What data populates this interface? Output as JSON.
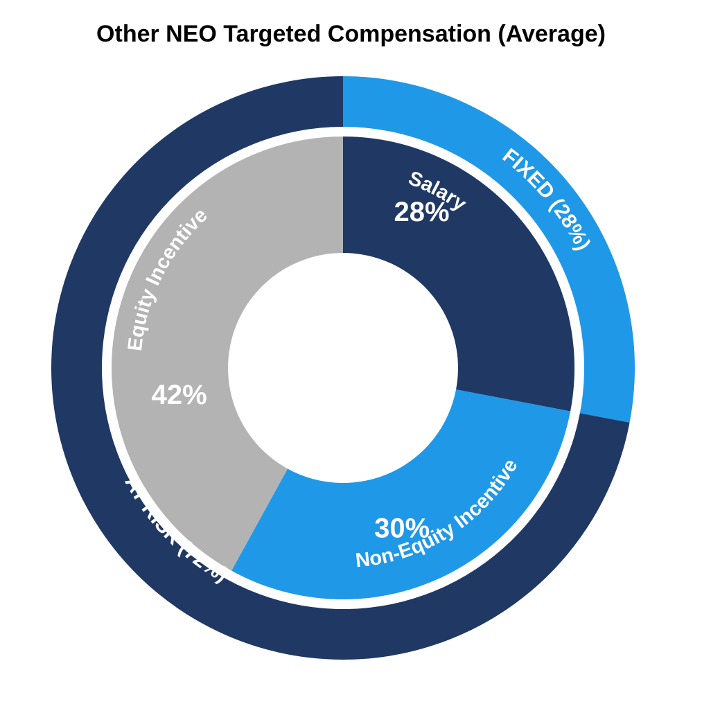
{
  "chart_data": {
    "type": "pie",
    "title": "Other NEO Targeted Compensation (Average)",
    "inner_ring": [
      {
        "label": "Salary",
        "value": 28,
        "value_label": "28%",
        "color": "#203864"
      },
      {
        "label": "Non-Equity Incentive",
        "value": 30,
        "value_label": "30%",
        "color": "#1f98e8"
      },
      {
        "label": "Equity Incentive",
        "value": 42,
        "value_label": "42%",
        "color": "#b3b3b3"
      }
    ],
    "outer_ring": [
      {
        "label": "FIXED (28%)",
        "value": 28,
        "color": "#1f98e8"
      },
      {
        "label": "AT RISK (72%)",
        "value": 72,
        "color": "#203864"
      }
    ]
  }
}
